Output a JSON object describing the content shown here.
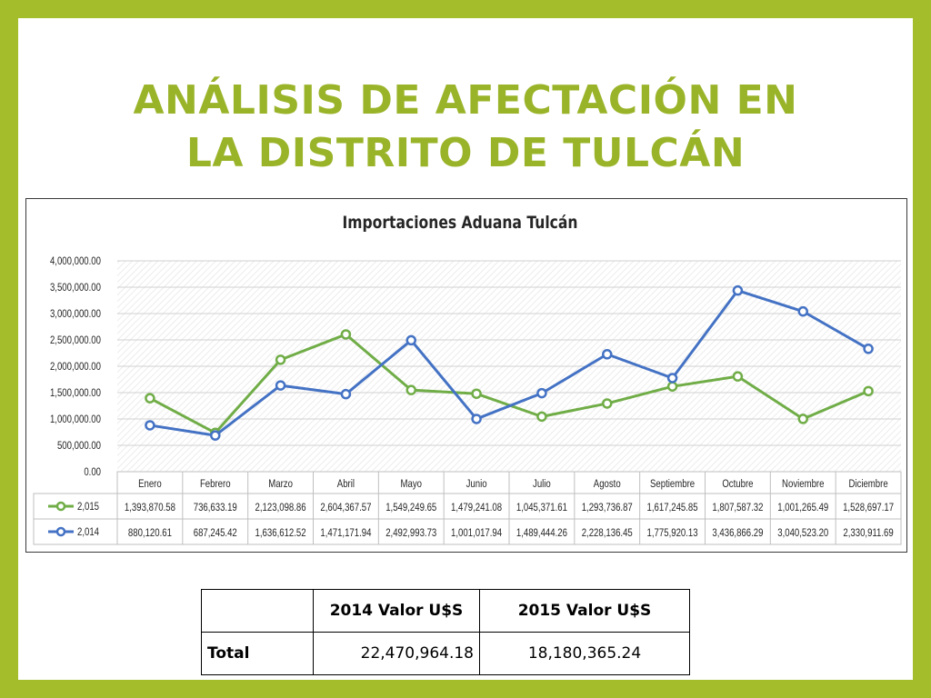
{
  "slide": {
    "title_line1": "ANÁLISIS DE AFECTACIÓN EN",
    "title_line2": "LA DISTRITO DE TULCÁN"
  },
  "chart_data": {
    "type": "line",
    "title": "Importaciones Aduana Tulcán",
    "xlabel": "",
    "ylabel": "",
    "ylim": [
      0,
      4000000
    ],
    "yticks": [
      "0.00",
      "500,000.00",
      "1,000,000.00",
      "1,500,000.00",
      "2,000,000.00",
      "2,500,000.00",
      "3,000,000.00",
      "3,500,000.00",
      "4,000,000.00"
    ],
    "categories": [
      "Enero",
      "Febrero",
      "Marzo",
      "Abril",
      "Mayo",
      "Junio",
      "Julio",
      "Agosto",
      "Septiembre",
      "Octubre",
      "Noviembre",
      "Diciembre"
    ],
    "grid": true,
    "legend": "data-table-below",
    "series": [
      {
        "name": "2,015",
        "color": "#70ad47",
        "values": [
          1393870.58,
          736633.19,
          2123098.86,
          2604367.57,
          1549249.65,
          1479241.08,
          1045371.61,
          1293736.87,
          1617245.85,
          1807587.32,
          1001265.49,
          1528697.17
        ],
        "labels": [
          "1,393,870.58",
          "736,633.19",
          "2,123,098.86",
          "2,604,367.57",
          "1,549,249.65",
          "1,479,241.08",
          "1,045,371.61",
          "1,293,736.87",
          "1,617,245.85",
          "1,807,587.32",
          "1,001,265.49",
          "1,528,697.17"
        ]
      },
      {
        "name": "2,014",
        "color": "#4472c4",
        "values": [
          880120.61,
          687245.42,
          1636612.52,
          1471171.94,
          2492993.73,
          1001017.94,
          1489444.26,
          2228136.45,
          1775920.13,
          3436866.29,
          3040523.2,
          2330911.69
        ],
        "labels": [
          "880,120.61",
          "687,245.42",
          "1,636,612.52",
          "1,471,171.94",
          "2,492,993.73",
          "1,001,017.94",
          "1,489,444.26",
          "2,228,136.45",
          "1,775,920.13",
          "3,436,866.29",
          "3,040,523.20",
          "2,330,911.69"
        ]
      }
    ]
  },
  "summary_table": {
    "headers": [
      "",
      "2014 Valor U$S",
      "2015 Valor U$S"
    ],
    "row": {
      "label": "Total",
      "v2014": "22,470,964.18",
      "v2015": "18,180,365.24"
    }
  }
}
